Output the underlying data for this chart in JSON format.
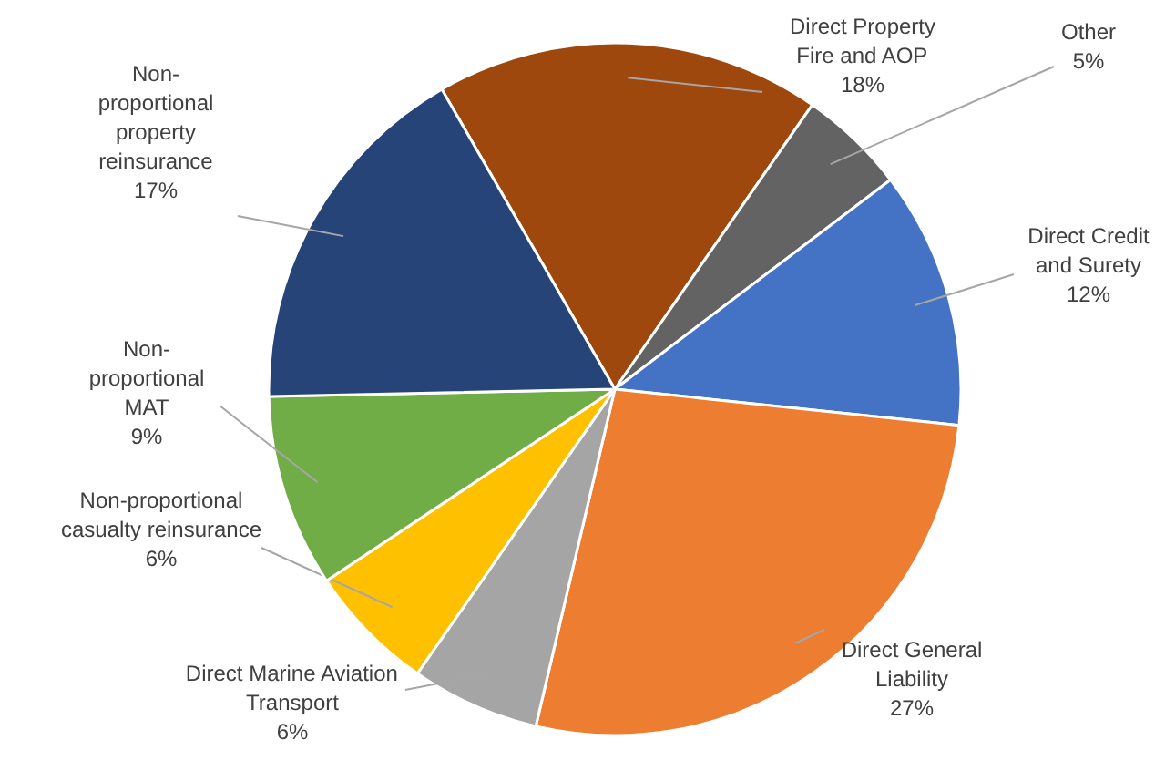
{
  "chart_data": {
    "type": "pie",
    "categories": [
      "Direct Property Fire and AOP",
      "Other",
      "Direct Credit and Surety",
      "Direct General Liability",
      "Direct Marine Aviation Transport",
      "Non-proportional casualty reinsurance",
      "Non-proportional MAT",
      "Non-proportional property reinsurance"
    ],
    "values": [
      18,
      5,
      12,
      27,
      6,
      6,
      9,
      17
    ],
    "value_labels": [
      "18%",
      "5%",
      "12%",
      "27%",
      "6%",
      "6%",
      "9%",
      "17%"
    ],
    "colors": [
      "#9e480e",
      "#636363",
      "#4472c4",
      "#ed7d31",
      "#a5a5a5",
      "#ffc000",
      "#70ad47",
      "#264478"
    ]
  }
}
